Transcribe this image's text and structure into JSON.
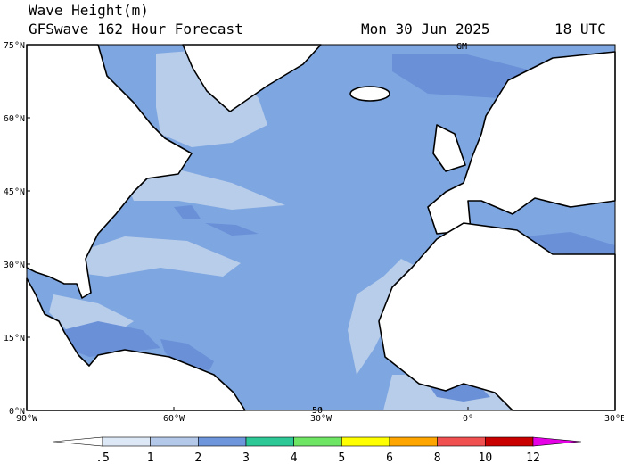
{
  "header": {
    "title": "Wave Height(m)",
    "subtitle": "GFSwave 162 Hour Forecast",
    "date": "Mon 30 Jun 2025",
    "time": "18 UTC"
  },
  "map": {
    "lat_labels": [
      "75°N",
      "60°N",
      "45°N",
      "30°N",
      "15°N",
      "0°N"
    ],
    "lon_labels": [
      "90°W",
      "60°W",
      "30°W",
      "0°",
      "30°E"
    ],
    "annotations": [
      "GM",
      "50"
    ]
  },
  "colorbar": {
    "labels": [
      ".5",
      "1",
      "2",
      "3",
      "4",
      "5",
      "6",
      "8",
      "10",
      "12"
    ],
    "colors": [
      "#ffffff",
      "#dde8f7",
      "#b4c8ea",
      "#6e96dc",
      "#2ec896",
      "#6ee664",
      "#ffff00",
      "#ffa500",
      "#f05050",
      "#c80000",
      "#e600e6"
    ]
  }
}
